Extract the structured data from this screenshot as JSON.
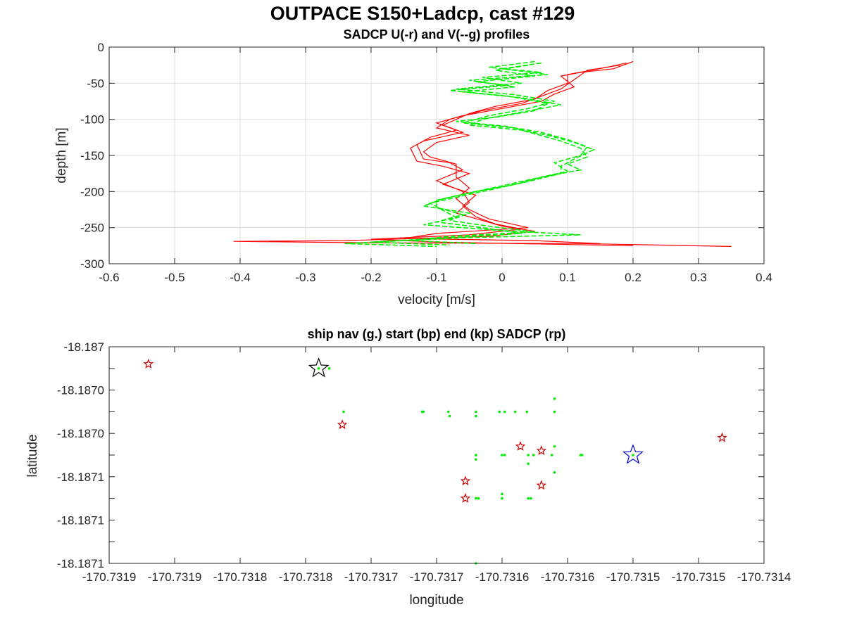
{
  "title": "OUTPACE S150+Ladcp, cast #129",
  "colors": {
    "u": "#ff0000",
    "v": "#00ee00",
    "start": "#000000",
    "end": "#0000cc",
    "sadcp": "#cc0000",
    "grid": "#dedede",
    "axis": "#262626"
  },
  "chart_data": [
    {
      "type": "line",
      "title": "SADCP U(-r) and V(--g) profiles",
      "xlabel": "velocity [m/s]",
      "ylabel": "depth [m]",
      "xlim": [
        -0.6,
        0.4
      ],
      "ylim": [
        -300,
        0
      ],
      "xticks": [
        -0.6,
        -0.5,
        -0.4,
        -0.3,
        -0.2,
        -0.1,
        0,
        0.1,
        0.2,
        0.3,
        0.4
      ],
      "yticks": [
        0,
        -50,
        -100,
        -150,
        -200,
        -250,
        -300
      ],
      "xtick_labels": [
        "-0.6",
        "-0.5",
        "-0.4",
        "-0.3",
        "-0.2",
        "-0.1",
        "0",
        "0.1",
        "0.2",
        "0.3",
        "0.4"
      ],
      "ytick_labels": [
        "0",
        "-50",
        "-100",
        "-150",
        "-200",
        "-250",
        "-300"
      ],
      "grid": true,
      "series": [
        {
          "style": "solid-red",
          "profiles": [
            [
              [
                0.2,
                -20
              ],
              [
                0.17,
                -30
              ],
              [
                0.12,
                -35
              ],
              [
                0.09,
                -40
              ],
              [
                0.11,
                -55
              ],
              [
                0.08,
                -65
              ],
              [
                0.06,
                -75
              ],
              [
                0.0,
                -85
              ],
              [
                -0.06,
                -95
              ],
              [
                -0.1,
                -105
              ],
              [
                -0.07,
                -115
              ],
              [
                -0.11,
                -125
              ],
              [
                -0.13,
                -135
              ],
              [
                -0.12,
                -155
              ],
              [
                -0.08,
                -160
              ],
              [
                -0.06,
                -170
              ],
              [
                -0.1,
                -185
              ],
              [
                -0.06,
                -200
              ],
              [
                -0.05,
                -215
              ],
              [
                -0.07,
                -230
              ],
              [
                -0.03,
                -240
              ],
              [
                0.0,
                -248
              ],
              [
                0.05,
                -255
              ],
              [
                -0.02,
                -262
              ],
              [
                -0.24,
                -268
              ],
              [
                -0.41,
                -269
              ],
              [
                -0.2,
                -271
              ],
              [
                0.12,
                -272
              ],
              [
                0.35,
                -276
              ]
            ],
            [
              [
                0.19,
                -22
              ],
              [
                0.16,
                -28
              ],
              [
                0.1,
                -38
              ],
              [
                0.1,
                -50
              ],
              [
                0.07,
                -60
              ],
              [
                0.05,
                -72
              ],
              [
                -0.01,
                -82
              ],
              [
                -0.05,
                -92
              ],
              [
                -0.09,
                -108
              ],
              [
                -0.06,
                -118
              ],
              [
                -0.12,
                -130
              ],
              [
                -0.14,
                -140
              ],
              [
                -0.13,
                -158
              ],
              [
                -0.09,
                -165
              ],
              [
                -0.05,
                -175
              ],
              [
                -0.09,
                -190
              ],
              [
                -0.04,
                -205
              ],
              [
                -0.06,
                -220
              ],
              [
                -0.04,
                -235
              ],
              [
                -0.01,
                -245
              ],
              [
                0.03,
                -252
              ],
              [
                -0.05,
                -260
              ],
              [
                -0.2,
                -266
              ],
              [
                -0.1,
                -270
              ],
              [
                0.08,
                -273
              ],
              [
                0.2,
                -275
              ]
            ],
            [
              [
                0.18,
                -25
              ],
              [
                0.13,
                -32
              ],
              [
                0.11,
                -45
              ],
              [
                0.09,
                -58
              ],
              [
                0.06,
                -68
              ],
              [
                0.03,
                -78
              ],
              [
                -0.03,
                -88
              ],
              [
                -0.08,
                -100
              ],
              [
                -0.1,
                -112
              ],
              [
                -0.05,
                -122
              ],
              [
                -0.1,
                -132
              ],
              [
                -0.12,
                -145
              ],
              [
                -0.11,
                -152
              ],
              [
                -0.07,
                -162
              ],
              [
                -0.07,
                -180
              ],
              [
                -0.05,
                -195
              ],
              [
                -0.07,
                -210
              ],
              [
                -0.05,
                -225
              ],
              [
                -0.02,
                -238
              ],
              [
                0.04,
                -250
              ],
              [
                -0.1,
                -258
              ],
              [
                -0.15,
                -265
              ],
              [
                0.05,
                -268
              ],
              [
                0.15,
                -272
              ]
            ]
          ]
        },
        {
          "style": "dashed-green",
          "profiles": [
            [
              [
                0.05,
                -20
              ],
              [
                -0.02,
                -28
              ],
              [
                0.06,
                -35
              ],
              [
                -0.03,
                -42
              ],
              [
                0.03,
                -50
              ],
              [
                -0.07,
                -58
              ],
              [
                0.02,
                -66
              ],
              [
                0.08,
                -75
              ],
              [
                0.04,
                -85
              ],
              [
                -0.02,
                -95
              ],
              [
                -0.06,
                -105
              ],
              [
                0.02,
                -112
              ],
              [
                0.06,
                -118
              ],
              [
                0.1,
                -128
              ],
              [
                0.13,
                -138
              ],
              [
                0.12,
                -150
              ],
              [
                0.08,
                -160
              ],
              [
                0.1,
                -172
              ],
              [
                0.05,
                -182
              ],
              [
                0.0,
                -192
              ],
              [
                -0.05,
                -202
              ],
              [
                -0.1,
                -212
              ],
              [
                -0.1,
                -222
              ],
              [
                -0.06,
                -232
              ],
              [
                -0.1,
                -242
              ],
              [
                -0.03,
                -250
              ],
              [
                0.03,
                -258
              ],
              [
                -0.12,
                -266
              ],
              [
                -0.2,
                -270
              ],
              [
                -0.08,
                -274
              ]
            ],
            [
              [
                0.06,
                -22
              ],
              [
                0.0,
                -30
              ],
              [
                0.07,
                -38
              ],
              [
                -0.05,
                -46
              ],
              [
                0.02,
                -55
              ],
              [
                -0.06,
                -62
              ],
              [
                0.03,
                -70
              ],
              [
                0.09,
                -80
              ],
              [
                0.03,
                -90
              ],
              [
                -0.03,
                -100
              ],
              [
                -0.05,
                -108
              ],
              [
                0.03,
                -115
              ],
              [
                0.07,
                -122
              ],
              [
                0.11,
                -132
              ],
              [
                0.14,
                -142
              ],
              [
                0.11,
                -155
              ],
              [
                0.09,
                -165
              ],
              [
                0.09,
                -175
              ],
              [
                0.04,
                -186
              ],
              [
                -0.01,
                -196
              ],
              [
                -0.06,
                -206
              ],
              [
                -0.11,
                -216
              ],
              [
                -0.09,
                -226
              ],
              [
                -0.07,
                -236
              ],
              [
                -0.12,
                -246
              ],
              [
                0.0,
                -254
              ],
              [
                0.12,
                -260
              ],
              [
                -0.06,
                -264
              ],
              [
                -0.24,
                -272
              ],
              [
                -0.1,
                -276
              ]
            ],
            [
              [
                0.04,
                -25
              ],
              [
                -0.01,
                -32
              ],
              [
                0.05,
                -40
              ],
              [
                -0.04,
                -48
              ],
              [
                0.01,
                -53
              ],
              [
                -0.08,
                -60
              ],
              [
                0.01,
                -68
              ],
              [
                0.07,
                -78
              ],
              [
                0.05,
                -88
              ],
              [
                -0.01,
                -97
              ],
              [
                -0.07,
                -103
              ],
              [
                0.01,
                -110
              ],
              [
                0.05,
                -120
              ],
              [
                0.09,
                -130
              ],
              [
                0.12,
                -140
              ],
              [
                0.13,
                -152
              ],
              [
                0.1,
                -162
              ],
              [
                0.12,
                -170
              ],
              [
                0.06,
                -180
              ],
              [
                0.02,
                -190
              ],
              [
                -0.04,
                -200
              ],
              [
                -0.09,
                -210
              ],
              [
                -0.12,
                -220
              ],
              [
                -0.05,
                -230
              ],
              [
                -0.08,
                -240
              ],
              [
                -0.02,
                -248
              ],
              [
                0.05,
                -256
              ],
              [
                -0.08,
                -262
              ],
              [
                -0.14,
                -268
              ],
              [
                -0.04,
                -272
              ]
            ]
          ]
        }
      ]
    },
    {
      "type": "scatter",
      "title": "ship nav (g.) start (bp) end (kp) SADCP (rp)",
      "xlabel": "longitude",
      "ylabel": "latitude",
      "xlim": [
        -170.73195,
        -170.73145
      ],
      "ylim": [
        -18.187125,
        -18.187075
      ],
      "xticks": [
        -170.73195,
        -170.7319,
        -170.73185,
        -170.7318,
        -170.73175,
        -170.7317,
        -170.73165,
        -170.7316,
        -170.73155,
        -170.7315,
        -170.73145
      ],
      "yticks": [
        -18.187075,
        -18.18708,
        -18.187085,
        -18.18709,
        -18.187095,
        -18.1871,
        -18.187105,
        -18.18711,
        -18.187115,
        -18.18712,
        -18.187125
      ],
      "xtick_labels": [
        "-170.7319",
        "-170.7319",
        "-170.7318",
        "-170.7318",
        "-170.7317",
        "-170.7317",
        "-170.7316",
        "-170.7316",
        "-170.7315",
        "-170.7315",
        "-170.7314"
      ],
      "ytick_labels": [
        "-18.187",
        "",
        "-18.1870",
        "",
        "-18.1870",
        "",
        "-18.1871",
        "",
        "-18.1871",
        "",
        "-18.1871"
      ],
      "grid": false,
      "nav_points": [
        [
          -170.73179,
          -18.18708
        ],
        [
          -170.731782,
          -18.18708
        ],
        [
          -170.731771,
          -18.18709
        ],
        [
          -170.73171,
          -18.18709
        ],
        [
          -170.731711,
          -18.18709
        ],
        [
          -170.731691,
          -18.18709
        ],
        [
          -170.73169,
          -18.187091
        ],
        [
          -170.73167,
          -18.18709
        ],
        [
          -170.73167,
          -18.187091
        ],
        [
          -170.731652,
          -18.18709
        ],
        [
          -170.731648,
          -18.18709
        ],
        [
          -170.73164,
          -18.18709
        ],
        [
          -170.731631,
          -18.18709
        ],
        [
          -170.73161,
          -18.18709
        ],
        [
          -170.73161,
          -18.187087
        ],
        [
          -170.73167,
          -18.1871
        ],
        [
          -170.73167,
          -18.187101
        ],
        [
          -170.73165,
          -18.1871
        ],
        [
          -170.731648,
          -18.1871
        ],
        [
          -170.73163,
          -18.1871
        ],
        [
          -170.731626,
          -18.1871
        ],
        [
          -170.731612,
          -18.1871
        ],
        [
          -170.73159,
          -18.1871
        ],
        [
          -170.731589,
          -18.1871
        ],
        [
          -170.73161,
          -18.187098
        ],
        [
          -170.73163,
          -18.187102
        ],
        [
          -170.73161,
          -18.187104
        ],
        [
          -170.73167,
          -18.18711
        ],
        [
          -170.731668,
          -18.18711
        ],
        [
          -170.73165,
          -18.18711
        ],
        [
          -170.73165,
          -18.187109
        ],
        [
          -170.73163,
          -18.18711
        ],
        [
          -170.731628,
          -18.18711
        ],
        [
          -170.73167,
          -18.187125
        ],
        [
          -170.73155,
          -18.1871
        ]
      ],
      "start": [
        -170.73179,
        -18.18708
      ],
      "end": [
        -170.73155,
        -18.1871
      ],
      "sadcp_points": [
        [
          -170.73192,
          -18.187079
        ],
        [
          -170.731772,
          -18.187093
        ],
        [
          -170.731482,
          -18.187096
        ],
        [
          -170.731636,
          -18.187098
        ],
        [
          -170.73162,
          -18.187099
        ],
        [
          -170.731678,
          -18.187106
        ],
        [
          -170.731678,
          -18.18711
        ],
        [
          -170.73162,
          -18.187107
        ]
      ]
    }
  ]
}
